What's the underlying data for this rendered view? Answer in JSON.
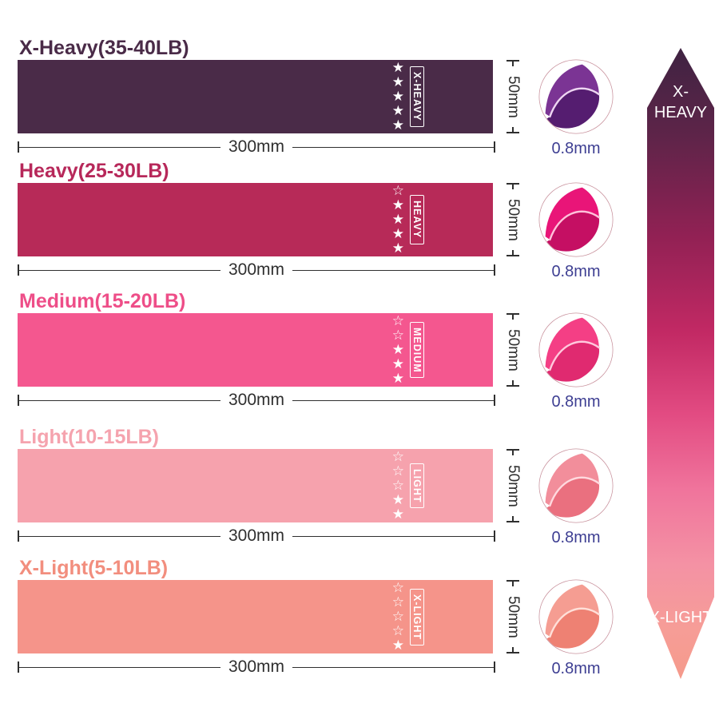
{
  "bands": [
    {
      "title": "X-Heavy(35-40LB)",
      "title_color": "#4a2b48",
      "color": "#4a2b48",
      "label": "X-HEAVY",
      "stars_filled": 5,
      "stars_total": 5,
      "width_label": "300mm",
      "height_label": "50mm",
      "thickness_label": "0.8mm",
      "fold": {
        "main": "#7b3494",
        "dark": "#551d70",
        "edge": "#eed6f2"
      }
    },
    {
      "title": "Heavy(25-30LB)",
      "title_color": "#b7285a",
      "color": "#b72a58",
      "label": "HEAVY",
      "stars_filled": 4,
      "stars_total": 5,
      "width_label": "300mm",
      "height_label": "50mm",
      "thickness_label": "0.8mm",
      "fold": {
        "main": "#e91578",
        "dark": "#c50f63",
        "edge": "#ffc2da"
      }
    },
    {
      "title": "Medium(15-20LB)",
      "title_color": "#ee4e88",
      "color": "#f4578f",
      "label": "MEDIUM",
      "stars_filled": 3,
      "stars_total": 5,
      "width_label": "300mm",
      "height_label": "50mm",
      "thickness_label": "0.8mm",
      "fold": {
        "main": "#f43f85",
        "dark": "#e02a70",
        "edge": "#ffc9dd"
      }
    },
    {
      "title": "Light(10-15LB)",
      "title_color": "#f5a3ae",
      "color": "#f6a2ad",
      "label": "LIGHT",
      "stars_filled": 2,
      "stars_total": 5,
      "width_label": "300mm",
      "height_label": "50mm",
      "thickness_label": "0.8mm",
      "fold": {
        "main": "#f28e9b",
        "dark": "#ea707f",
        "edge": "#ffd9de"
      }
    },
    {
      "title": "X-Light(5-10LB)",
      "title_color": "#f28e7e",
      "color": "#f5948a",
      "label": "X-LIGHT",
      "stars_filled": 1,
      "stars_total": 5,
      "width_label": "300mm",
      "height_label": "50mm",
      "thickness_label": "0.8mm",
      "fold": {
        "main": "#f59d92",
        "dark": "#ee8173",
        "edge": "#ffe0d9"
      }
    }
  ],
  "scale_arrow": {
    "top_label": "X-HEAVY",
    "bottom_label": "X-LIGHT",
    "gradient": [
      "#3f2342 0%",
      "#5e2449 14%",
      "#922154 30%",
      "#c22964 45%",
      "#e24b82 58%",
      "#f0749c 70%",
      "#f492a4 82%",
      "#f69d97 92%",
      "#f59a8b 100%"
    ]
  }
}
